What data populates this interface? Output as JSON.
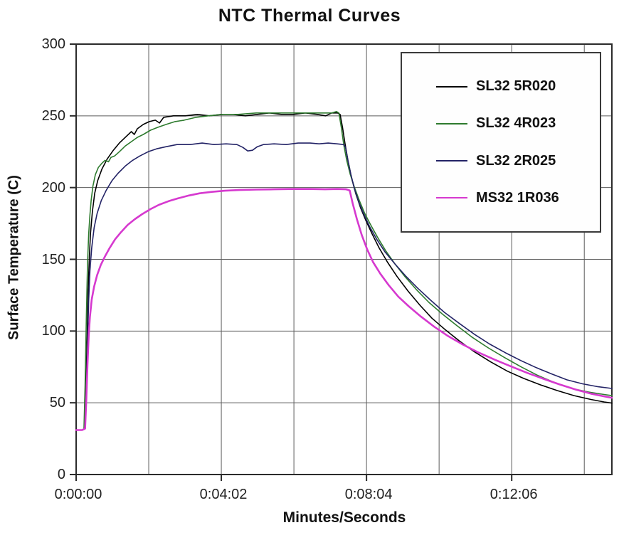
{
  "chart_data": {
    "type": "line",
    "title": "NTC Thermal Curves",
    "xlabel": "Minutes/Seconds",
    "ylabel": "Surface Temperature (C)",
    "x_unit": "seconds",
    "xlim": [
      0,
      893
    ],
    "ylim": [
      0,
      300
    ],
    "y_ticks": [
      0,
      50,
      100,
      150,
      200,
      250,
      300
    ],
    "x_major_ticks_seconds": [
      0,
      242,
      484,
      726
    ],
    "x_tick_labels": [
      "0:00:00",
      "0:04:02",
      "0:08:04",
      "0:12:06"
    ],
    "x_gridline_interval_seconds": 121,
    "grid": true,
    "legend_position": "top-right",
    "colors": {
      "grid": "#5c5c5c",
      "border": "#2b2b2b",
      "background": "#ffffff"
    },
    "series": [
      {
        "name": "SL32 5R020",
        "color": "#000000",
        "width": 1.6,
        "points": [
          [
            0,
            31
          ],
          [
            10,
            31
          ],
          [
            14,
            32
          ],
          [
            16,
            55
          ],
          [
            18,
            90
          ],
          [
            20,
            128
          ],
          [
            22,
            152
          ],
          [
            24,
            168
          ],
          [
            27,
            183
          ],
          [
            31,
            196
          ],
          [
            36,
            205
          ],
          [
            43,
            213
          ],
          [
            52,
            220
          ],
          [
            62,
            226
          ],
          [
            72,
            231
          ],
          [
            82,
            235
          ],
          [
            92,
            239
          ],
          [
            97,
            237
          ],
          [
            102,
            241
          ],
          [
            112,
            244
          ],
          [
            122,
            246
          ],
          [
            132,
            247
          ],
          [
            139,
            245
          ],
          [
            146,
            249
          ],
          [
            162,
            250
          ],
          [
            182,
            250
          ],
          [
            202,
            251
          ],
          [
            222,
            250
          ],
          [
            242,
            251
          ],
          [
            262,
            251
          ],
          [
            282,
            250
          ],
          [
            302,
            251
          ],
          [
            322,
            252
          ],
          [
            342,
            251
          ],
          [
            362,
            251
          ],
          [
            382,
            252
          ],
          [
            402,
            251
          ],
          [
            416,
            250
          ],
          [
            426,
            252
          ],
          [
            436,
            252
          ],
          [
            440,
            251
          ],
          [
            444,
            242
          ],
          [
            448,
            231
          ],
          [
            453,
            219
          ],
          [
            459,
            207
          ],
          [
            466,
            196
          ],
          [
            474,
            186
          ],
          [
            483,
            177
          ],
          [
            493,
            168
          ],
          [
            505,
            158
          ],
          [
            519,
            148
          ],
          [
            535,
            138
          ],
          [
            553,
            128
          ],
          [
            573,
            118
          ],
          [
            593,
            109
          ],
          [
            615,
            101
          ],
          [
            639,
            93
          ],
          [
            664,
            85.5
          ],
          [
            691,
            78.5
          ],
          [
            719,
            72
          ],
          [
            746,
            67
          ],
          [
            774,
            62.5
          ],
          [
            802,
            58.5
          ],
          [
            830,
            55
          ],
          [
            858,
            52.3
          ],
          [
            880,
            50.6
          ],
          [
            893,
            49.8
          ]
        ]
      },
      {
        "name": "SL32 4R023",
        "color": "#2e7b2e",
        "width": 1.6,
        "points": [
          [
            0,
            31
          ],
          [
            10,
            31
          ],
          [
            13,
            32
          ],
          [
            15,
            62
          ],
          [
            17,
            108
          ],
          [
            19,
            147
          ],
          [
            21,
            168
          ],
          [
            23,
            181
          ],
          [
            25,
            191
          ],
          [
            28,
            201
          ],
          [
            32,
            209
          ],
          [
            37,
            214
          ],
          [
            43,
            217
          ],
          [
            48,
            219
          ],
          [
            54,
            218
          ],
          [
            58,
            221
          ],
          [
            64,
            222
          ],
          [
            72,
            225
          ],
          [
            82,
            229
          ],
          [
            92,
            232
          ],
          [
            102,
            235
          ],
          [
            112,
            237
          ],
          [
            124,
            240
          ],
          [
            136,
            242
          ],
          [
            150,
            244
          ],
          [
            165,
            246
          ],
          [
            180,
            247
          ],
          [
            200,
            249
          ],
          [
            220,
            250
          ],
          [
            245,
            251
          ],
          [
            270,
            251
          ],
          [
            300,
            252
          ],
          [
            330,
            252
          ],
          [
            360,
            252
          ],
          [
            390,
            252
          ],
          [
            412,
            252
          ],
          [
            426,
            252
          ],
          [
            434,
            253
          ],
          [
            438,
            252
          ],
          [
            442,
            242
          ],
          [
            446,
            230
          ],
          [
            451,
            219
          ],
          [
            457,
            209
          ],
          [
            464,
            200
          ],
          [
            472,
            191
          ],
          [
            481,
            182
          ],
          [
            491,
            174
          ],
          [
            503,
            165
          ],
          [
            516,
            156
          ],
          [
            531,
            147
          ],
          [
            548,
            138
          ],
          [
            567,
            129
          ],
          [
            588,
            120
          ],
          [
            610,
            112
          ],
          [
            634,
            104
          ],
          [
            659,
            96
          ],
          [
            686,
            88.5
          ],
          [
            714,
            81.5
          ],
          [
            742,
            75
          ],
          [
            770,
            69
          ],
          [
            798,
            64
          ],
          [
            826,
            60
          ],
          [
            854,
            57.5
          ],
          [
            880,
            55.8
          ],
          [
            893,
            55
          ]
        ]
      },
      {
        "name": "SL32 2R025",
        "color": "#232366",
        "width": 1.6,
        "points": [
          [
            0,
            31
          ],
          [
            10,
            31
          ],
          [
            15,
            32
          ],
          [
            17,
            58
          ],
          [
            19,
            92
          ],
          [
            21,
            122
          ],
          [
            23,
            142
          ],
          [
            26,
            158
          ],
          [
            30,
            172
          ],
          [
            35,
            182
          ],
          [
            42,
            191
          ],
          [
            50,
            198
          ],
          [
            60,
            205
          ],
          [
            70,
            210
          ],
          [
            82,
            215
          ],
          [
            94,
            219
          ],
          [
            106,
            222
          ],
          [
            120,
            225
          ],
          [
            134,
            227
          ],
          [
            150,
            228.5
          ],
          [
            168,
            230
          ],
          [
            190,
            230
          ],
          [
            210,
            231
          ],
          [
            230,
            230
          ],
          [
            250,
            230.5
          ],
          [
            268,
            230
          ],
          [
            278,
            228
          ],
          [
            286,
            225.5
          ],
          [
            294,
            226
          ],
          [
            302,
            228.5
          ],
          [
            312,
            230
          ],
          [
            330,
            230.5
          ],
          [
            350,
            230
          ],
          [
            370,
            231
          ],
          [
            390,
            231
          ],
          [
            405,
            230.5
          ],
          [
            420,
            231
          ],
          [
            435,
            230.5
          ],
          [
            446,
            230
          ],
          [
            449,
            228
          ],
          [
            453,
            219
          ],
          [
            458,
            209
          ],
          [
            464,
            199
          ],
          [
            471,
            190
          ],
          [
            479,
            182
          ],
          [
            489,
            173
          ],
          [
            501,
            164
          ],
          [
            515,
            155
          ],
          [
            531,
            147
          ],
          [
            549,
            138.5
          ],
          [
            569,
            130
          ],
          [
            591,
            121.5
          ],
          [
            614,
            113
          ],
          [
            638,
            105.5
          ],
          [
            663,
            98
          ],
          [
            689,
            91
          ],
          [
            715,
            85
          ],
          [
            741,
            79.5
          ],
          [
            767,
            74.5
          ],
          [
            793,
            70
          ],
          [
            818,
            66
          ],
          [
            844,
            63.2
          ],
          [
            870,
            61.2
          ],
          [
            893,
            60
          ]
        ]
      },
      {
        "name": "MS32 1R036",
        "color": "#d639cf",
        "width": 2.6,
        "points": [
          [
            0,
            31
          ],
          [
            10,
            31
          ],
          [
            15,
            32
          ],
          [
            17,
            52
          ],
          [
            19,
            77
          ],
          [
            21,
            97
          ],
          [
            23,
            110
          ],
          [
            26,
            122
          ],
          [
            30,
            131
          ],
          [
            35,
            139
          ],
          [
            41,
            146
          ],
          [
            48,
            152
          ],
          [
            56,
            158
          ],
          [
            65,
            164
          ],
          [
            75,
            169
          ],
          [
            86,
            174
          ],
          [
            98,
            178
          ],
          [
            110,
            181.5
          ],
          [
            124,
            185
          ],
          [
            138,
            188
          ],
          [
            154,
            190.5
          ],
          [
            170,
            192.5
          ],
          [
            188,
            194.5
          ],
          [
            206,
            196
          ],
          [
            226,
            197
          ],
          [
            248,
            197.8
          ],
          [
            272,
            198.3
          ],
          [
            300,
            198.6
          ],
          [
            330,
            198.8
          ],
          [
            360,
            199
          ],
          [
            390,
            199
          ],
          [
            415,
            198.8
          ],
          [
            435,
            199
          ],
          [
            450,
            198.8
          ],
          [
            456,
            198
          ],
          [
            461,
            189
          ],
          [
            468,
            178
          ],
          [
            476,
            167
          ],
          [
            485,
            157
          ],
          [
            495,
            148
          ],
          [
            507,
            140
          ],
          [
            521,
            132
          ],
          [
            537,
            124
          ],
          [
            555,
            117
          ],
          [
            575,
            110
          ],
          [
            597,
            103
          ],
          [
            620,
            96.5
          ],
          [
            645,
            90.5
          ],
          [
            671,
            85
          ],
          [
            698,
            80
          ],
          [
            725,
            75.3
          ],
          [
            752,
            70.8
          ],
          [
            779,
            66.7
          ],
          [
            806,
            62.8
          ],
          [
            833,
            59.2
          ],
          [
            860,
            56.2
          ],
          [
            880,
            54.5
          ],
          [
            893,
            53.5
          ]
        ]
      }
    ]
  }
}
